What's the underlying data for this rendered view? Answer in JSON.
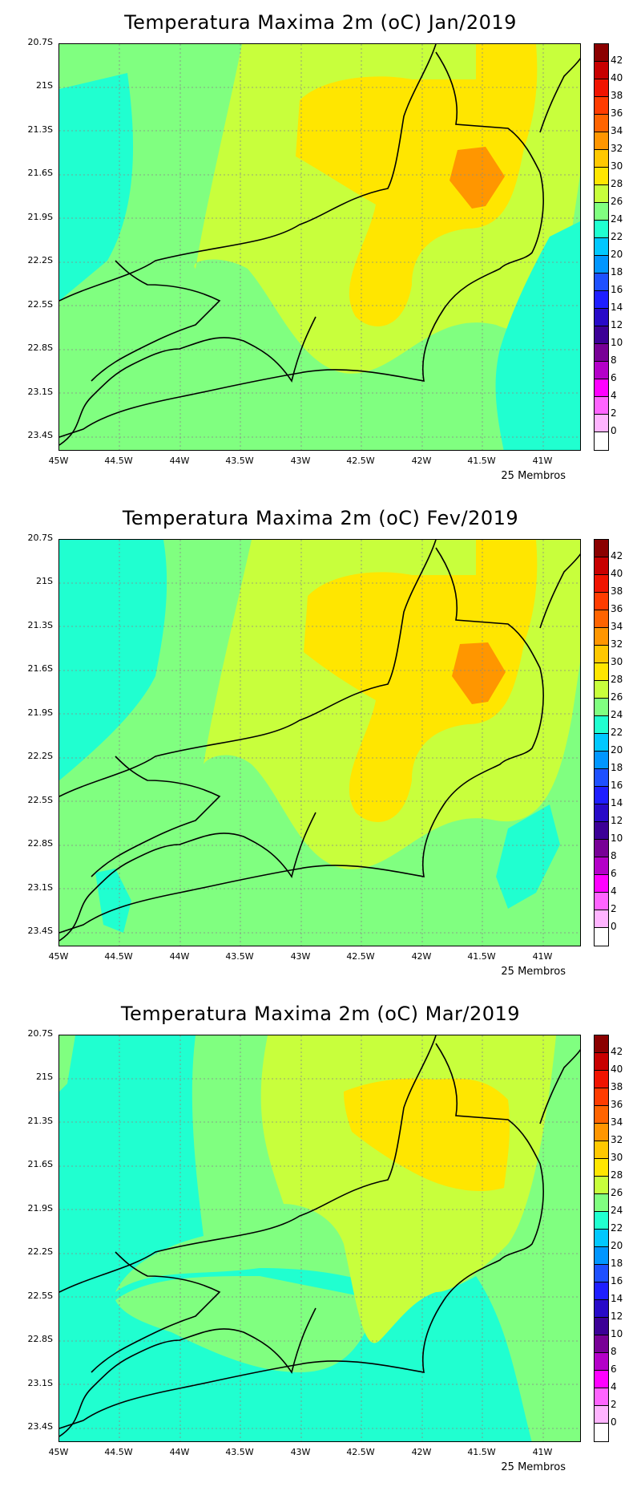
{
  "panels": [
    {
      "title": "Temperatura Maxima 2m (oC) Jan/2019",
      "members": "25 Membros"
    },
    {
      "title": "Temperatura Maxima 2m (oC) Fev/2019",
      "members": "25 Membros"
    },
    {
      "title": "Temperatura Maxima 2m (oC) Mar/2019",
      "members": "25 Membros"
    }
  ],
  "lat_ticks": [
    "20.7S",
    "21S",
    "21.3S",
    "21.6S",
    "21.9S",
    "22.2S",
    "22.5S",
    "22.8S",
    "23.1S",
    "23.4S"
  ],
  "lon_ticks": [
    "45W",
    "44.5W",
    "44W",
    "43.5W",
    "43W",
    "42.5W",
    "42W",
    "41.5W",
    "41W"
  ],
  "colorbar": {
    "labels": [
      "42",
      "40",
      "38",
      "36",
      "34",
      "32",
      "30",
      "28",
      "26",
      "24",
      "22",
      "20",
      "18",
      "16",
      "14",
      "12",
      "10",
      "8",
      "6",
      "4",
      "2",
      "0"
    ],
    "colors": [
      "#8b0000",
      "#c80000",
      "#f01400",
      "#ff3c00",
      "#ff6400",
      "#ff9600",
      "#ffc800",
      "#ffe600",
      "#c8ff3c",
      "#80ff80",
      "#20ffd0",
      "#00c8ff",
      "#0096ff",
      "#1e50ff",
      "#1e1eff",
      "#280ac8",
      "#3c0096",
      "#780096",
      "#b400c8",
      "#ff00ff",
      "#ff64ff",
      "#ffb4ff",
      "#ffffff"
    ]
  }
}
